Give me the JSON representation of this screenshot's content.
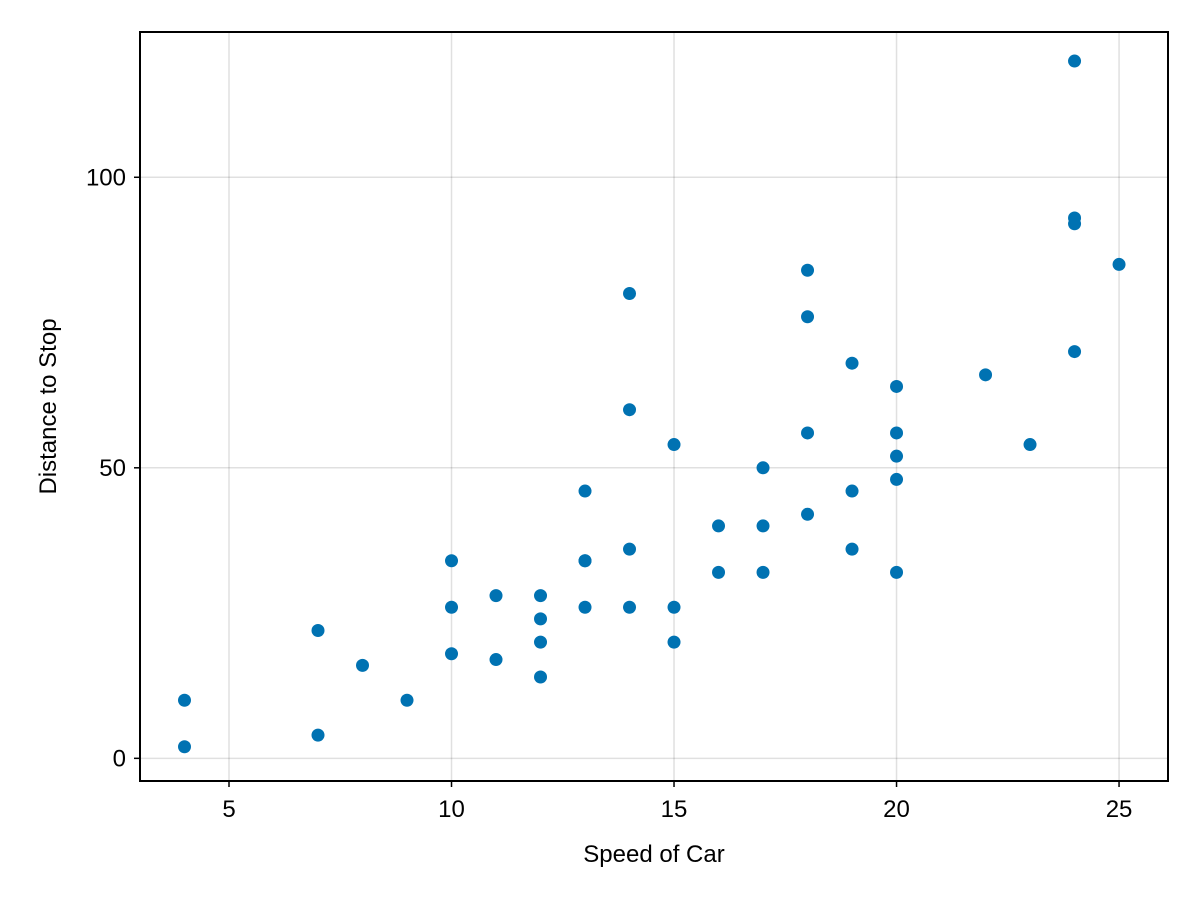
{
  "chart_data": {
    "type": "scatter",
    "title": "",
    "xlabel": "Speed of Car",
    "ylabel": "Distance to Stop",
    "xlim": [
      3,
      26.1
    ],
    "ylim": [
      -3.9,
      125
    ],
    "xticks": [
      5,
      10,
      15,
      20,
      25
    ],
    "yticks": [
      0,
      50,
      100
    ],
    "grid": true,
    "marker_color": "#0072B2",
    "points": [
      {
        "x": 4,
        "y": 2
      },
      {
        "x": 4,
        "y": 10
      },
      {
        "x": 7,
        "y": 4
      },
      {
        "x": 7,
        "y": 22
      },
      {
        "x": 8,
        "y": 16
      },
      {
        "x": 9,
        "y": 10
      },
      {
        "x": 10,
        "y": 18
      },
      {
        "x": 10,
        "y": 26
      },
      {
        "x": 10,
        "y": 34
      },
      {
        "x": 11,
        "y": 17
      },
      {
        "x": 11,
        "y": 28
      },
      {
        "x": 12,
        "y": 14
      },
      {
        "x": 12,
        "y": 20
      },
      {
        "x": 12,
        "y": 24
      },
      {
        "x": 12,
        "y": 28
      },
      {
        "x": 13,
        "y": 26
      },
      {
        "x": 13,
        "y": 34
      },
      {
        "x": 13,
        "y": 34
      },
      {
        "x": 13,
        "y": 46
      },
      {
        "x": 14,
        "y": 26
      },
      {
        "x": 14,
        "y": 36
      },
      {
        "x": 14,
        "y": 60
      },
      {
        "x": 14,
        "y": 80
      },
      {
        "x": 15,
        "y": 20
      },
      {
        "x": 15,
        "y": 26
      },
      {
        "x": 15,
        "y": 54
      },
      {
        "x": 16,
        "y": 32
      },
      {
        "x": 16,
        "y": 40
      },
      {
        "x": 17,
        "y": 32
      },
      {
        "x": 17,
        "y": 40
      },
      {
        "x": 17,
        "y": 50
      },
      {
        "x": 18,
        "y": 42
      },
      {
        "x": 18,
        "y": 56
      },
      {
        "x": 18,
        "y": 76
      },
      {
        "x": 18,
        "y": 84
      },
      {
        "x": 19,
        "y": 36
      },
      {
        "x": 19,
        "y": 46
      },
      {
        "x": 19,
        "y": 68
      },
      {
        "x": 20,
        "y": 32
      },
      {
        "x": 20,
        "y": 48
      },
      {
        "x": 20,
        "y": 52
      },
      {
        "x": 20,
        "y": 56
      },
      {
        "x": 20,
        "y": 64
      },
      {
        "x": 22,
        "y": 66
      },
      {
        "x": 23,
        "y": 54
      },
      {
        "x": 24,
        "y": 70
      },
      {
        "x": 24,
        "y": 92
      },
      {
        "x": 24,
        "y": 93
      },
      {
        "x": 24,
        "y": 120
      },
      {
        "x": 25,
        "y": 85
      }
    ]
  }
}
